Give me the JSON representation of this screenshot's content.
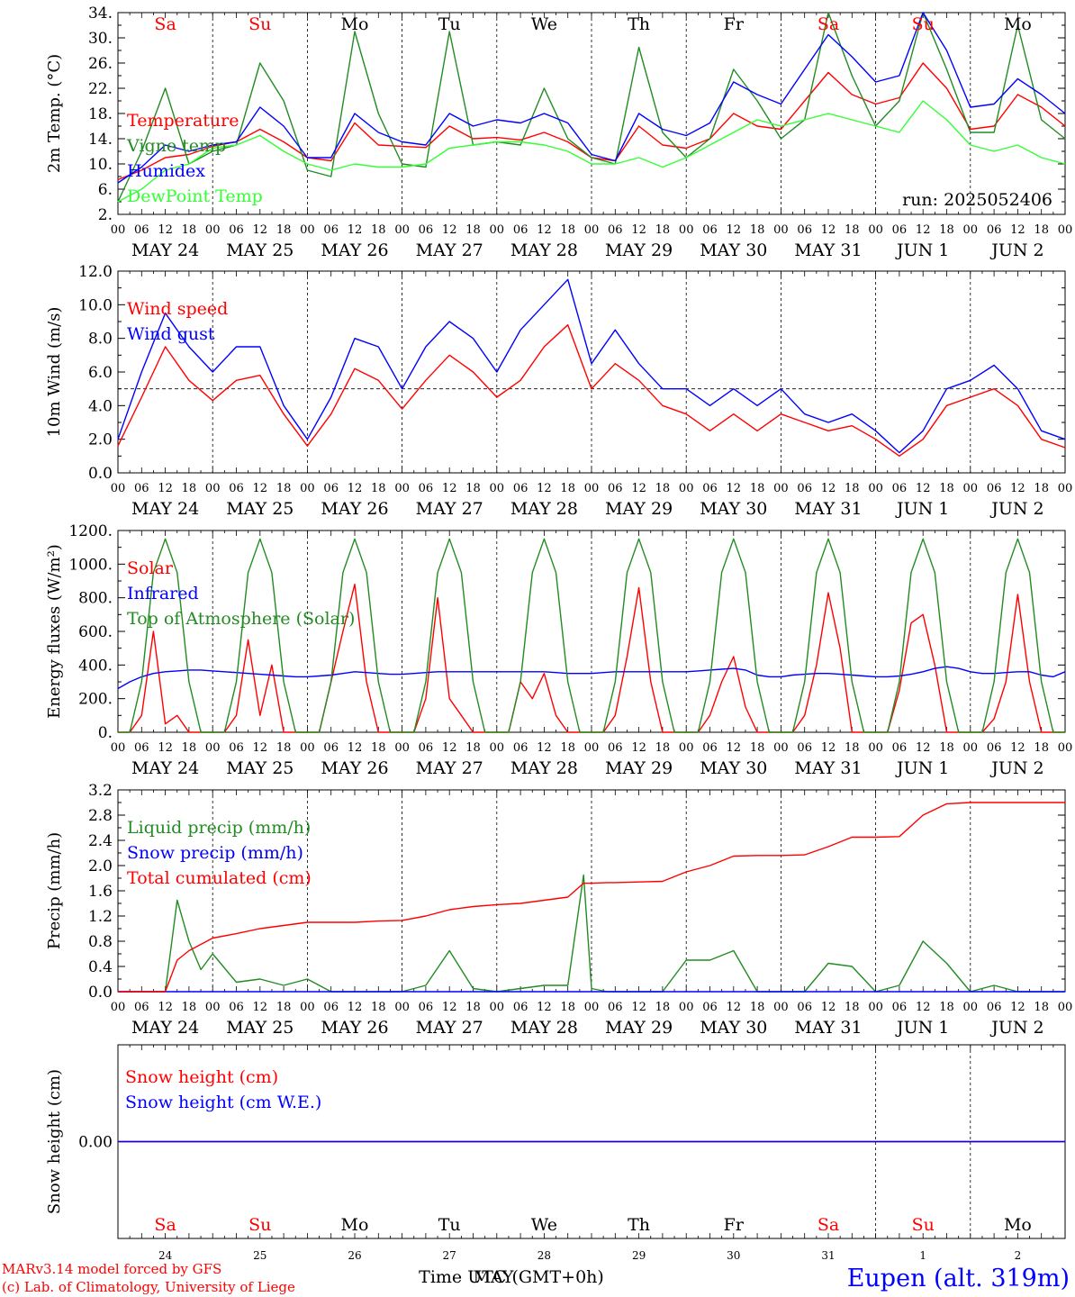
{
  "panels": [
    {
      "id": "temp",
      "ylabel": "2m Temp. (°C)",
      "yticks": [
        "34.",
        "30.",
        "26.",
        "22.",
        "18.",
        "14.",
        "10.",
        "6.",
        "2."
      ],
      "ylim": [
        2,
        34
      ],
      "legend": [
        {
          "label": "Temperature",
          "color": "#ff0000"
        },
        {
          "label": "Vigne temp",
          "color": "#228b22"
        },
        {
          "label": "Humidex",
          "color": "#0000ff"
        },
        {
          "label": "DewPoint Temp",
          "color": "#33ff33"
        }
      ],
      "note": "run: 2025052406"
    },
    {
      "id": "wind",
      "ylabel": "10m Wind (m/s)",
      "yticks": [
        "12.0",
        "10.0",
        "8.0",
        "6.0",
        "4.0",
        "2.0",
        "0.0"
      ],
      "ylim": [
        0,
        12
      ],
      "legend": [
        {
          "label": "Wind speed",
          "color": "#ff0000"
        },
        {
          "label": "Wind gust",
          "color": "#0000ff"
        }
      ]
    },
    {
      "id": "energy",
      "ylabel": "Energy fluxes (W/m²)",
      "yticks": [
        "1200.",
        "1000.",
        "800.",
        "600.",
        "400.",
        "200.",
        "0."
      ],
      "ylim": [
        0,
        1200
      ],
      "legend": [
        {
          "label": "Solar",
          "color": "#ff0000"
        },
        {
          "label": "Infrared",
          "color": "#0000ff"
        },
        {
          "label": "Top of Atmosphere (Solar)",
          "color": "#228b22"
        }
      ]
    },
    {
      "id": "precip",
      "ylabel": "Precip (mm/h)",
      "yticks": [
        "3.2",
        "2.8",
        "2.4",
        "2.0",
        "1.6",
        "1.2",
        "0.8",
        "0.4",
        "0.0"
      ],
      "ylim": [
        0,
        3.2
      ],
      "legend": [
        {
          "label": "Liquid precip (mm/h)",
          "color": "#228b22"
        },
        {
          "label": "Snow precip (mm/h)",
          "color": "#0000ff"
        },
        {
          "label": "Total cumulated (cm)",
          "color": "#ff0000"
        }
      ]
    },
    {
      "id": "snow",
      "ylabel": "Snow height (cm)",
      "yticks": [
        "0.00"
      ],
      "ylim": [
        -1,
        1
      ],
      "legend": [
        {
          "label": "Snow height (cm)",
          "color": "#ff0000"
        },
        {
          "label": "Snow height (cm W.E.)",
          "color": "#0000ff"
        }
      ]
    }
  ],
  "days": [
    "MAY 24",
    "MAY 25",
    "MAY 26",
    "MAY 27",
    "MAY 28",
    "MAY 29",
    "MAY 30",
    "MAY 31",
    "JUN  1",
    "JUN  2"
  ],
  "weekdays": [
    {
      "label": "Sa",
      "color": "#ff0000"
    },
    {
      "label": "Su",
      "color": "#ff0000"
    },
    {
      "label": "Mo",
      "color": "#000000"
    },
    {
      "label": "Tu",
      "color": "#000000"
    },
    {
      "label": "We",
      "color": "#000000"
    },
    {
      "label": "Th",
      "color": "#000000"
    },
    {
      "label": "Fr",
      "color": "#000000"
    },
    {
      "label": "Sa",
      "color": "#ff0000"
    },
    {
      "label": "Su",
      "color": "#ff0000"
    },
    {
      "label": "Mo",
      "color": "#000000"
    }
  ],
  "daynums": [
    "24",
    "25",
    "26",
    "27",
    "28",
    "29",
    "30",
    "31",
    "1",
    "2"
  ],
  "hour_ticks": [
    "00",
    "06",
    "12",
    "18"
  ],
  "footer": {
    "credit1": "MARv3.14 model forced by GFS",
    "credit2": "(c) Lab. of Climatology, University of Liege",
    "xlabel": "Time UTC (GMT+0h)",
    "month": "MAY",
    "station": "Eupen (alt. 319m)"
  },
  "chart_data": [
    {
      "type": "line",
      "title": "",
      "ylabel": "2m Temp. (°C)",
      "ylim": [
        2,
        34
      ],
      "x": [
        0,
        6,
        12,
        18,
        24,
        30,
        36,
        42,
        48,
        54,
        60,
        66,
        72,
        78,
        84,
        90,
        96,
        102,
        108,
        114,
        120,
        126,
        132,
        138,
        144,
        150,
        156,
        162,
        168,
        174,
        180,
        186,
        192,
        198,
        204,
        210,
        216,
        222,
        228,
        234,
        240
      ],
      "series": [
        {
          "name": "Temperature",
          "color": "#ff0000",
          "values": [
            7.5,
            9,
            11,
            11.5,
            12.8,
            13.5,
            15.5,
            13.5,
            11,
            10.5,
            16.5,
            13,
            12.8,
            12.6,
            16,
            14,
            14.2,
            13.8,
            15,
            13.5,
            11,
            10.5,
            16,
            13,
            12.5,
            14,
            18,
            16,
            15.5,
            20,
            24.5,
            21,
            19.5,
            20.5,
            26,
            22,
            15.5,
            16,
            21,
            19,
            16
          ]
        },
        {
          "name": "Vigne temp",
          "color": "#228b22",
          "values": [
            4,
            12,
            22,
            10,
            12,
            13,
            26,
            20,
            9,
            8,
            31,
            18,
            10,
            9.5,
            31,
            13,
            13.5,
            13,
            22,
            14,
            11,
            10,
            28.5,
            15,
            11,
            14,
            25,
            20,
            14,
            17,
            34,
            24,
            16,
            20,
            34,
            25,
            15,
            15,
            32,
            17,
            14
          ]
        },
        {
          "name": "Humidex",
          "color": "#0000ff",
          "values": [
            7,
            9.5,
            13,
            12,
            13,
            13.5,
            19,
            16,
            11,
            11,
            18,
            15,
            13.5,
            13,
            18,
            16,
            17,
            16.5,
            18,
            16.5,
            11.5,
            10.5,
            18,
            15.5,
            14.5,
            16.5,
            23,
            21,
            19.5,
            25,
            30.5,
            27,
            23,
            24,
            34,
            28,
            19,
            19.5,
            23.5,
            21,
            18
          ]
        },
        {
          "name": "DewPoint Temp",
          "color": "#33ff33",
          "values": [
            4,
            6,
            9,
            10,
            12.5,
            13,
            14.5,
            12,
            10,
            9,
            10,
            9.5,
            9.5,
            10,
            12.5,
            13,
            13.5,
            13.5,
            13,
            12,
            10,
            10,
            11,
            9.5,
            11,
            13,
            15,
            17,
            16,
            17,
            18,
            17,
            16,
            15,
            20,
            17,
            13,
            12,
            13,
            11,
            10
          ]
        }
      ]
    },
    {
      "type": "line",
      "title": "",
      "ylabel": "10m Wind (m/s)",
      "ylim": [
        0,
        12
      ],
      "x": [
        0,
        6,
        12,
        18,
        24,
        30,
        36,
        42,
        48,
        54,
        60,
        66,
        72,
        78,
        84,
        90,
        96,
        102,
        108,
        114,
        120,
        126,
        132,
        138,
        144,
        150,
        156,
        162,
        168,
        174,
        180,
        186,
        192,
        198,
        204,
        210,
        216,
        222,
        228,
        234,
        240
      ],
      "series": [
        {
          "name": "Wind speed",
          "color": "#ff0000",
          "values": [
            1.6,
            4.5,
            7.5,
            5.5,
            4.3,
            5.5,
            5.8,
            3.5,
            1.6,
            3.5,
            6.2,
            5.5,
            3.8,
            5.5,
            7,
            6,
            4.5,
            5.5,
            7.5,
            8.8,
            5,
            6.5,
            5.5,
            4,
            3.5,
            2.5,
            3.5,
            2.5,
            3.5,
            3,
            2.5,
            2.8,
            2,
            1,
            2,
            4,
            4.5,
            5,
            4,
            2,
            1.5
          ]
        },
        {
          "name": "Wind gust",
          "color": "#0000ff",
          "values": [
            2,
            6,
            9.5,
            7.5,
            6,
            7.5,
            7.5,
            4,
            2,
            4.5,
            8,
            7.5,
            5,
            7.5,
            9,
            8,
            6,
            8.5,
            10,
            11.5,
            6.5,
            8.5,
            6.5,
            5,
            5,
            4,
            5,
            4,
            5,
            3.5,
            3,
            3.5,
            2.5,
            1.2,
            2.5,
            5,
            5.5,
            6.4,
            5,
            2.5,
            2
          ]
        }
      ]
    },
    {
      "type": "line",
      "title": "",
      "ylabel": "Energy fluxes (W/m²)",
      "ylim": [
        0,
        1200
      ],
      "x": [
        0,
        3,
        6,
        9,
        12,
        15,
        18,
        21,
        24,
        27,
        30,
        33,
        36,
        39,
        42,
        45,
        48,
        51,
        54,
        57,
        60,
        63,
        66,
        69,
        72,
        75,
        78,
        81,
        84,
        87,
        90,
        93,
        96,
        99,
        102,
        105,
        108,
        111,
        114,
        117,
        120,
        123,
        126,
        129,
        132,
        135,
        138,
        141,
        144,
        147,
        150,
        153,
        156,
        159,
        162,
        165,
        168,
        171,
        174,
        177,
        180,
        183,
        186,
        189,
        192,
        195,
        198,
        201,
        204,
        207,
        210,
        213,
        216,
        219,
        222,
        225,
        228,
        231,
        234,
        237,
        240
      ],
      "series": [
        {
          "name": "Solar",
          "color": "#ff0000",
          "values": [
            0,
            0,
            100,
            600,
            50,
            100,
            0,
            0,
            0,
            0,
            100,
            550,
            100,
            400,
            0,
            0,
            0,
            0,
            300,
            600,
            880,
            300,
            0,
            0,
            0,
            0,
            200,
            800,
            200,
            100,
            0,
            0,
            0,
            0,
            300,
            200,
            350,
            100,
            0,
            0,
            0,
            0,
            100,
            450,
            860,
            300,
            0,
            0,
            0,
            0,
            100,
            300,
            450,
            150,
            0,
            0,
            0,
            0,
            100,
            400,
            830,
            500,
            0,
            0,
            0,
            0,
            250,
            650,
            700,
            400,
            0,
            0,
            0,
            0,
            80,
            300,
            820,
            300,
            0,
            0,
            0
          ]
        },
        {
          "name": "Infrared",
          "color": "#0000ff",
          "values": [
            260,
            300,
            330,
            350,
            360,
            365,
            370,
            370,
            365,
            360,
            355,
            350,
            345,
            340,
            335,
            330,
            330,
            335,
            340,
            350,
            360,
            355,
            350,
            345,
            345,
            350,
            355,
            360,
            360,
            360,
            360,
            360,
            360,
            360,
            360,
            360,
            360,
            355,
            350,
            350,
            350,
            355,
            360,
            360,
            360,
            360,
            360,
            360,
            360,
            365,
            370,
            375,
            380,
            370,
            340,
            330,
            330,
            340,
            345,
            350,
            350,
            345,
            340,
            335,
            330,
            330,
            335,
            345,
            360,
            380,
            390,
            380,
            360,
            350,
            350,
            355,
            360,
            360,
            340,
            330,
            360
          ]
        },
        {
          "name": "Top of Atmosphere (Solar)",
          "color": "#228b22",
          "values": [
            0,
            0,
            300,
            950,
            1150,
            950,
            300,
            0,
            0,
            0,
            300,
            950,
            1150,
            950,
            300,
            0,
            0,
            0,
            300,
            950,
            1150,
            950,
            300,
            0,
            0,
            0,
            300,
            950,
            1150,
            950,
            300,
            0,
            0,
            0,
            300,
            950,
            1150,
            950,
            300,
            0,
            0,
            0,
            300,
            950,
            1150,
            950,
            300,
            0,
            0,
            0,
            300,
            950,
            1150,
            950,
            300,
            0,
            0,
            0,
            300,
            950,
            1150,
            950,
            300,
            0,
            0,
            0,
            300,
            950,
            1150,
            950,
            300,
            0,
            0,
            0,
            300,
            950,
            1150,
            950,
            300,
            0,
            0
          ]
        }
      ]
    },
    {
      "type": "line",
      "title": "",
      "ylabel": "Precip (mm/h)",
      "ylim": [
        0,
        3.2
      ],
      "x": [
        0,
        6,
        12,
        15,
        18,
        21,
        24,
        30,
        36,
        42,
        48,
        54,
        60,
        66,
        72,
        78,
        84,
        90,
        96,
        102,
        108,
        114,
        118,
        120,
        124,
        126,
        132,
        138,
        144,
        150,
        156,
        162,
        168,
        174,
        180,
        186,
        192,
        198,
        204,
        210,
        216,
        222,
        228,
        234,
        240
      ],
      "series": [
        {
          "name": "Liquid precip (mm/h)",
          "color": "#228b22",
          "values": [
            0,
            0,
            0,
            1.45,
            0.8,
            0.35,
            0.6,
            0.15,
            0.2,
            0.1,
            0.2,
            0,
            0,
            0,
            0,
            0.1,
            0.65,
            0.05,
            0,
            0.05,
            0.1,
            0.1,
            1.85,
            0.05,
            0,
            0,
            0,
            0,
            0.5,
            0.5,
            0.65,
            0,
            0,
            0,
            0.45,
            0.4,
            0,
            0.1,
            0.8,
            0.45,
            0,
            0.1,
            0,
            0,
            0
          ]
        },
        {
          "name": "Snow precip (mm/h)",
          "color": "#0000ff",
          "values": [
            0,
            0,
            0,
            0,
            0,
            0,
            0,
            0,
            0,
            0,
            0,
            0,
            0,
            0,
            0,
            0,
            0,
            0,
            0,
            0,
            0,
            0,
            0,
            0,
            0,
            0,
            0,
            0,
            0,
            0,
            0,
            0,
            0,
            0,
            0,
            0,
            0,
            0,
            0,
            0,
            0,
            0,
            0,
            0,
            0
          ]
        },
        {
          "name": "Total cumulated (cm)",
          "color": "#ff0000",
          "values": [
            0,
            0,
            0,
            0.5,
            0.65,
            0.75,
            0.85,
            0.92,
            1.0,
            1.05,
            1.1,
            1.1,
            1.1,
            1.12,
            1.13,
            1.2,
            1.3,
            1.35,
            1.38,
            1.4,
            1.45,
            1.5,
            1.72,
            1.72,
            1.73,
            1.73,
            1.74,
            1.75,
            1.9,
            2.0,
            2.15,
            2.16,
            2.16,
            2.17,
            2.3,
            2.45,
            2.45,
            2.46,
            2.8,
            2.98,
            3.0,
            3.0,
            3.0,
            3.0,
            3.0
          ]
        }
      ]
    },
    {
      "type": "line",
      "title": "",
      "ylabel": "Snow height (cm)",
      "ylim": [
        -1,
        1
      ],
      "x": [
        0,
        240
      ],
      "series": [
        {
          "name": "Snow height (cm)",
          "color": "#ff0000",
          "values": [
            0,
            0
          ]
        },
        {
          "name": "Snow height (cm W.E.)",
          "color": "#0000ff",
          "values": [
            0,
            0
          ]
        }
      ]
    }
  ]
}
